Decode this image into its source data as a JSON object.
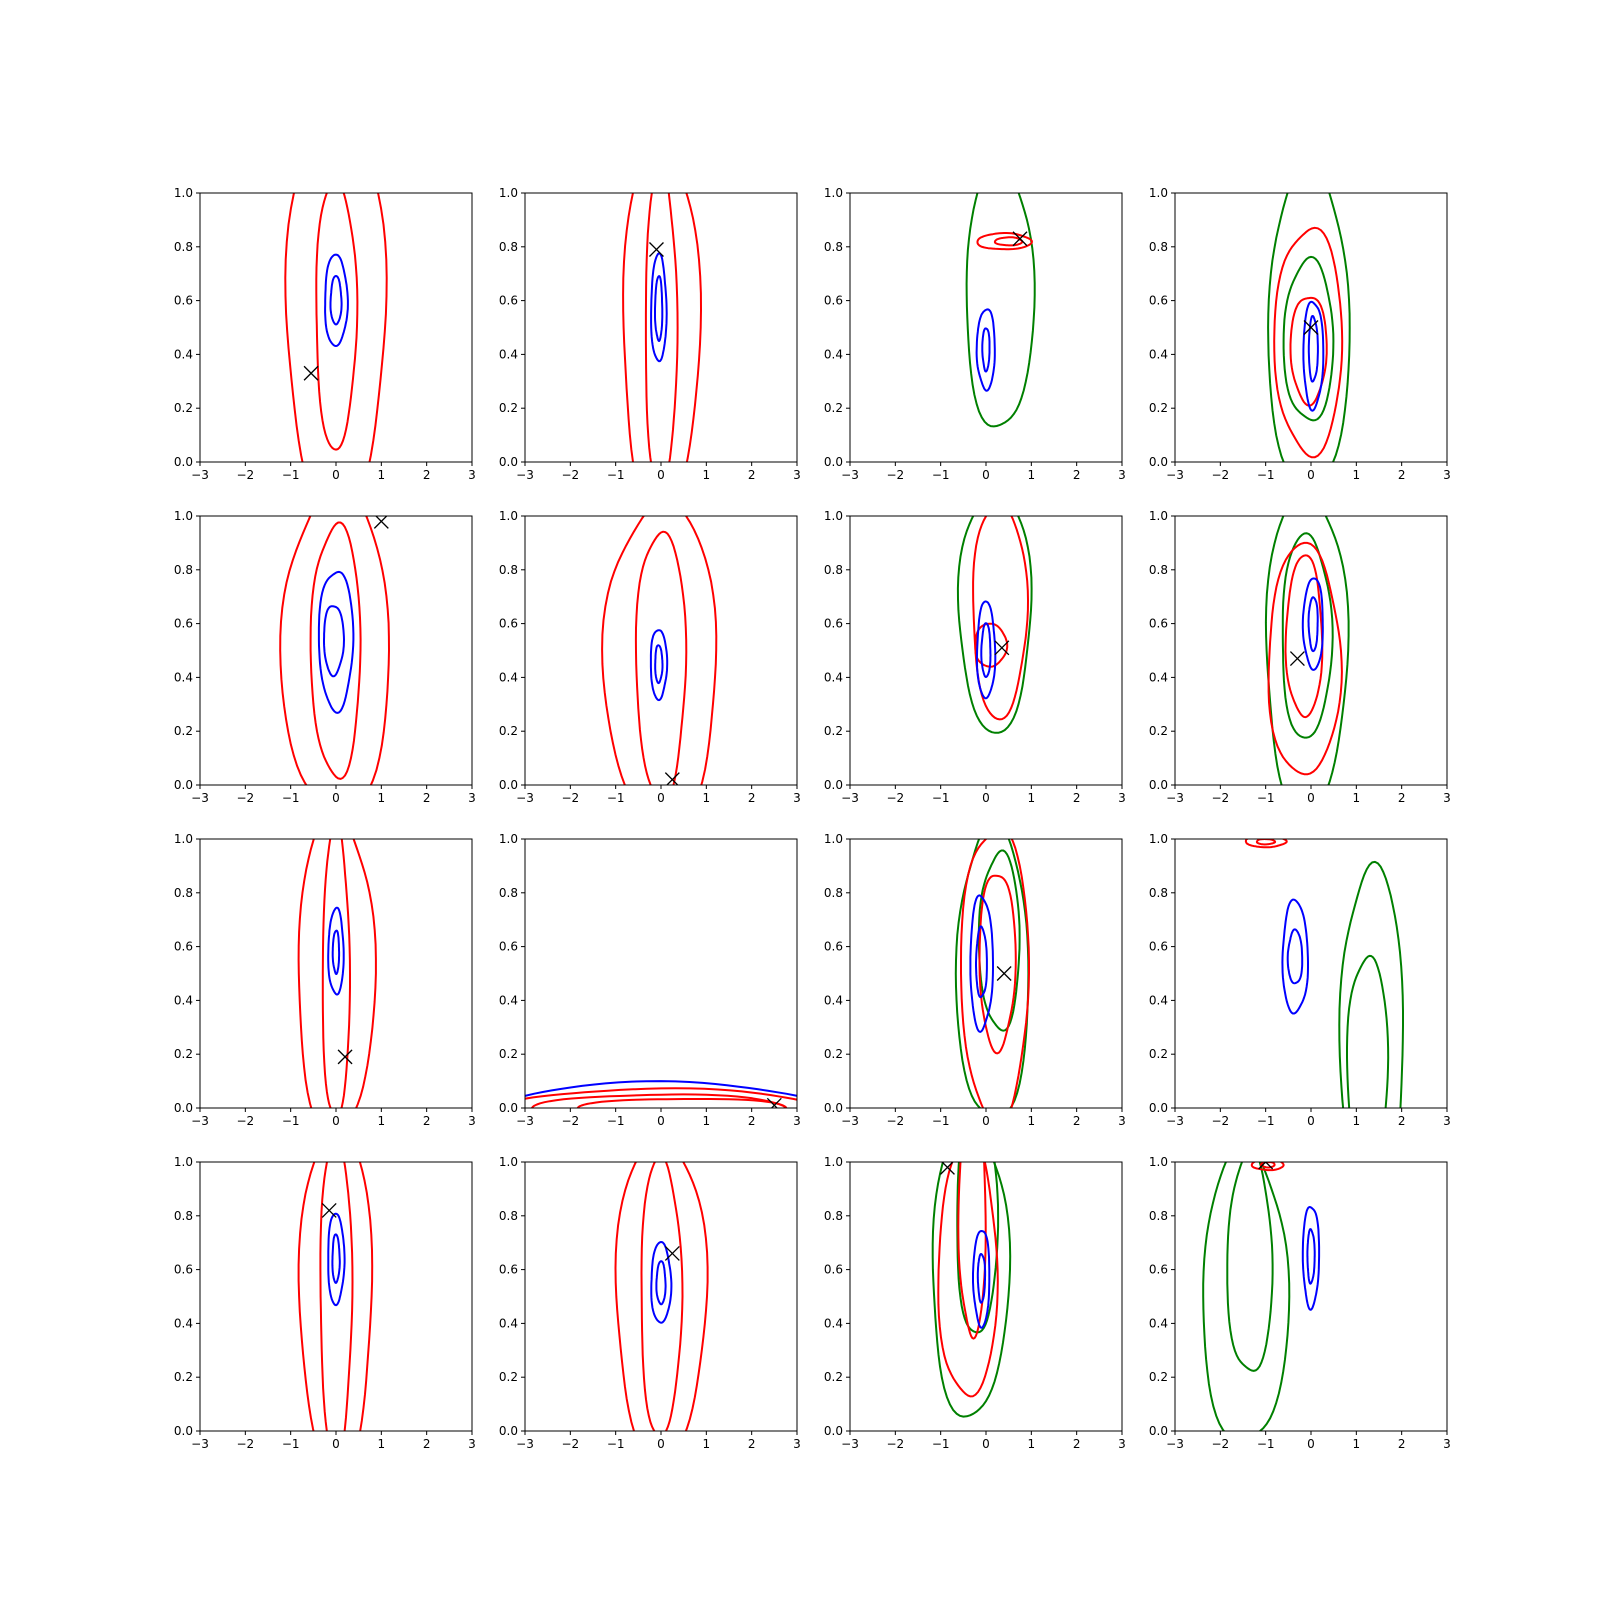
{
  "colors": {
    "red": "#ff0000",
    "blue": "#0000ff",
    "green": "#008000",
    "marker": "#000000"
  },
  "chart_data": {
    "type": "contour",
    "grid": {
      "rows": 4,
      "cols": 4
    },
    "xlim": [
      -3,
      3
    ],
    "ylim": [
      0,
      1
    ],
    "x_ticks": [
      "−3",
      "−2",
      "−1",
      "0",
      "1",
      "2",
      "3"
    ],
    "y_ticks": [
      "0.0",
      "0.2",
      "0.4",
      "0.6",
      "0.8",
      "1.0"
    ],
    "grid_lines": false,
    "panels": [
      {
        "marker": [
          -0.55,
          0.33
        ],
        "contours": [
          {
            "color": "red",
            "cx": 0,
            "cy": 0.55,
            "rx": 1.1,
            "ry": 0.75
          },
          {
            "color": "red",
            "cx": 0,
            "cy": 0.55,
            "rx": 0.45,
            "ry": 0.5
          },
          {
            "color": "blue",
            "cx": 0,
            "cy": 0.6,
            "rx": 0.25,
            "ry": 0.17
          },
          {
            "color": "blue",
            "cx": 0,
            "cy": 0.6,
            "rx": 0.12,
            "ry": 0.09
          }
        ]
      },
      {
        "marker": [
          -0.1,
          0.79
        ],
        "contours": [
          {
            "color": "red",
            "cx": 0,
            "cy": 0.5,
            "rx": 0.85,
            "ry": 0.7
          },
          {
            "color": "red",
            "cx": 0,
            "cy": 0.5,
            "rx": 0.35,
            "ry": 0.6
          },
          {
            "color": "blue",
            "cx": -0.05,
            "cy": 0.57,
            "rx": 0.17,
            "ry": 0.2
          },
          {
            "color": "blue",
            "cx": -0.05,
            "cy": 0.57,
            "rx": 0.08,
            "ry": 0.12
          }
        ]
      },
      {
        "marker": [
          0.75,
          0.83
        ],
        "contours": [
          {
            "color": "green",
            "cx": 0.3,
            "cy": 0.62,
            "rx": 0.75,
            "ry": 0.5
          },
          {
            "color": "red",
            "cx": 0.4,
            "cy": 0.82,
            "rx": 0.6,
            "ry": 0.03
          },
          {
            "color": "red",
            "cx": 0.5,
            "cy": 0.82,
            "rx": 0.3,
            "ry": 0.015
          },
          {
            "color": "blue",
            "cx": 0,
            "cy": 0.42,
            "rx": 0.2,
            "ry": 0.15
          },
          {
            "color": "blue",
            "cx": 0,
            "cy": 0.42,
            "rx": 0.08,
            "ry": 0.08
          }
        ]
      },
      {
        "marker": [
          0,
          0.5
        ],
        "contours": [
          {
            "color": "green",
            "cx": -0.05,
            "cy": 0.5,
            "rx": 0.9,
            "ry": 0.6
          },
          {
            "color": "green",
            "cx": -0.05,
            "cy": 0.45,
            "rx": 0.55,
            "ry": 0.3
          },
          {
            "color": "red",
            "cx": -0.05,
            "cy": 0.45,
            "rx": 0.75,
            "ry": 0.42
          },
          {
            "color": "red",
            "cx": -0.05,
            "cy": 0.42,
            "rx": 0.4,
            "ry": 0.2
          },
          {
            "color": "blue",
            "cx": 0.05,
            "cy": 0.4,
            "rx": 0.22,
            "ry": 0.2
          },
          {
            "color": "blue",
            "cx": 0.05,
            "cy": 0.42,
            "rx": 0.1,
            "ry": 0.12
          }
        ]
      },
      {
        "marker": [
          1,
          0.98
        ],
        "contours": [
          {
            "color": "red",
            "cx": 0,
            "cy": 0.5,
            "rx": 1.2,
            "ry": 0.6
          },
          {
            "color": "red",
            "cx": 0,
            "cy": 0.5,
            "rx": 0.55,
            "ry": 0.47
          },
          {
            "color": "blue",
            "cx": 0,
            "cy": 0.54,
            "rx": 0.38,
            "ry": 0.26
          },
          {
            "color": "blue",
            "cx": -0.05,
            "cy": 0.54,
            "rx": 0.22,
            "ry": 0.13
          }
        ]
      },
      {
        "marker": [
          0.25,
          0.02
        ],
        "contours": [
          {
            "color": "red",
            "cx": 0,
            "cy": 0.45,
            "rx": 1.25,
            "ry": 0.6
          },
          {
            "color": "red",
            "cx": 0,
            "cy": 0.45,
            "rx": 0.55,
            "ry": 0.5
          },
          {
            "color": "blue",
            "cx": -0.05,
            "cy": 0.45,
            "rx": 0.18,
            "ry": 0.13
          },
          {
            "color": "blue",
            "cx": -0.05,
            "cy": 0.45,
            "rx": 0.08,
            "ry": 0.07
          }
        ]
      },
      {
        "marker": [
          0.35,
          0.51
        ],
        "contours": [
          {
            "color": "green",
            "cx": 0.2,
            "cy": 0.65,
            "rx": 0.8,
            "ry": 0.45
          },
          {
            "color": "red",
            "cx": 0.3,
            "cy": 0.65,
            "rx": 0.6,
            "ry": 0.4
          },
          {
            "color": "red",
            "cx": 0.1,
            "cy": 0.52,
            "rx": 0.35,
            "ry": 0.08
          },
          {
            "color": "blue",
            "cx": 0,
            "cy": 0.5,
            "rx": 0.2,
            "ry": 0.18
          },
          {
            "color": "blue",
            "cx": 0,
            "cy": 0.5,
            "rx": 0.1,
            "ry": 0.1
          }
        ]
      },
      {
        "marker": [
          -0.3,
          0.47
        ],
        "contours": [
          {
            "color": "green",
            "cx": -0.1,
            "cy": 0.5,
            "rx": 0.9,
            "ry": 0.6
          },
          {
            "color": "green",
            "cx": -0.1,
            "cy": 0.55,
            "rx": 0.55,
            "ry": 0.38
          },
          {
            "color": "red",
            "cx": -0.15,
            "cy": 0.46,
            "rx": 0.8,
            "ry": 0.43
          },
          {
            "color": "red",
            "cx": -0.15,
            "cy": 0.55,
            "rx": 0.4,
            "ry": 0.3
          },
          {
            "color": "blue",
            "cx": 0.05,
            "cy": 0.6,
            "rx": 0.22,
            "ry": 0.17
          },
          {
            "color": "blue",
            "cx": 0.05,
            "cy": 0.6,
            "rx": 0.1,
            "ry": 0.1
          }
        ]
      },
      {
        "marker": [
          0.2,
          0.19
        ],
        "contours": [
          {
            "color": "red",
            "cx": 0,
            "cy": 0.5,
            "rx": 0.85,
            "ry": 0.6
          },
          {
            "color": "red",
            "cx": 0,
            "cy": 0.5,
            "rx": 0.3,
            "ry": 0.55
          },
          {
            "color": "blue",
            "cx": 0,
            "cy": 0.58,
            "rx": 0.17,
            "ry": 0.16
          },
          {
            "color": "blue",
            "cx": 0,
            "cy": 0.58,
            "rx": 0.07,
            "ry": 0.08
          }
        ]
      },
      {
        "marker": [
          2.5,
          0.01
        ],
        "contours": [
          {
            "color": "blue",
            "cx": 0,
            "cy": 0.0,
            "rx": 3.5,
            "ry": 0.095
          },
          {
            "color": "red",
            "cx": 0,
            "cy": 0.0,
            "rx": 3.5,
            "ry": 0.07
          },
          {
            "color": "red",
            "cx": 0,
            "cy": 0.0,
            "rx": 2.8,
            "ry": 0.05
          },
          {
            "color": "red",
            "cx": 0.5,
            "cy": 0.0,
            "rx": 2.3,
            "ry": 0.035
          }
        ]
      },
      {
        "marker": [
          0.4,
          0.5
        ],
        "contours": [
          {
            "color": "green",
            "cx": 0.15,
            "cy": 0.5,
            "rx": 0.8,
            "ry": 0.55
          },
          {
            "color": "green",
            "cx": 0.3,
            "cy": 0.62,
            "rx": 0.45,
            "ry": 0.33
          },
          {
            "color": "red",
            "cx": 0.2,
            "cy": 0.5,
            "rx": 0.75,
            "ry": 0.55
          },
          {
            "color": "red",
            "cx": 0.25,
            "cy": 0.55,
            "rx": 0.4,
            "ry": 0.33
          },
          {
            "color": "blue",
            "cx": -0.1,
            "cy": 0.54,
            "rx": 0.25,
            "ry": 0.25
          },
          {
            "color": "blue",
            "cx": -0.1,
            "cy": 0.54,
            "rx": 0.12,
            "ry": 0.13
          }
        ]
      },
      {
        "marker": null,
        "contours": [
          {
            "color": "green",
            "cx": 1.35,
            "cy": 0.25,
            "rx": 0.7,
            "ry": 0.65
          },
          {
            "color": "green",
            "cx": 1.25,
            "cy": 0.15,
            "rx": 0.45,
            "ry": 0.42
          },
          {
            "color": "red",
            "cx": -1,
            "cy": 0.99,
            "rx": 0.45,
            "ry": 0.02
          },
          {
            "color": "red",
            "cx": -1,
            "cy": 0.99,
            "rx": 0.2,
            "ry": 0.01
          },
          {
            "color": "blue",
            "cx": -0.35,
            "cy": 0.56,
            "rx": 0.28,
            "ry": 0.21
          },
          {
            "color": "blue",
            "cx": -0.35,
            "cy": 0.56,
            "rx": 0.16,
            "ry": 0.1
          }
        ]
      },
      {
        "marker": [
          -0.15,
          0.82
        ],
        "contours": [
          {
            "color": "red",
            "cx": 0,
            "cy": 0.5,
            "rx": 0.8,
            "ry": 0.65
          },
          {
            "color": "red",
            "cx": 0,
            "cy": 0.5,
            "rx": 0.35,
            "ry": 0.6
          },
          {
            "color": "blue",
            "cx": 0,
            "cy": 0.64,
            "rx": 0.18,
            "ry": 0.17
          },
          {
            "color": "blue",
            "cx": 0,
            "cy": 0.64,
            "rx": 0.08,
            "ry": 0.09
          }
        ]
      },
      {
        "marker": [
          0.25,
          0.66
        ],
        "contours": [
          {
            "color": "red",
            "cx": 0,
            "cy": 0.5,
            "rx": 1.0,
            "ry": 0.6
          },
          {
            "color": "red",
            "cx": 0,
            "cy": 0.5,
            "rx": 0.45,
            "ry": 0.52
          },
          {
            "color": "blue",
            "cx": 0,
            "cy": 0.55,
            "rx": 0.22,
            "ry": 0.15
          },
          {
            "color": "blue",
            "cx": 0,
            "cy": 0.55,
            "rx": 0.1,
            "ry": 0.08
          }
        ]
      },
      {
        "marker": [
          -0.85,
          0.98
        ],
        "contours": [
          {
            "color": "green",
            "cx": -0.35,
            "cy": 0.6,
            "rx": 0.85,
            "ry": 0.55
          },
          {
            "color": "green",
            "cx": -0.2,
            "cy": 0.8,
            "rx": 0.45,
            "ry": 0.45
          },
          {
            "color": "red",
            "cx": -0.4,
            "cy": 0.6,
            "rx": 0.65,
            "ry": 0.48
          },
          {
            "color": "red",
            "cx": -0.3,
            "cy": 0.8,
            "rx": 0.3,
            "ry": 0.45
          },
          {
            "color": "blue",
            "cx": -0.1,
            "cy": 0.57,
            "rx": 0.18,
            "ry": 0.18
          },
          {
            "color": "blue",
            "cx": -0.1,
            "cy": 0.57,
            "rx": 0.08,
            "ry": 0.09
          }
        ]
      },
      {
        "marker": [
          -1,
          1.0
        ],
        "contours": [
          {
            "color": "green",
            "cx": -1.45,
            "cy": 0.5,
            "rx": 0.95,
            "ry": 0.55
          },
          {
            "color": "green",
            "cx": -1.35,
            "cy": 0.62,
            "rx": 0.5,
            "ry": 0.41
          },
          {
            "color": "red",
            "cx": -0.95,
            "cy": 0.99,
            "rx": 0.35,
            "ry": 0.02
          },
          {
            "color": "red",
            "cx": -0.95,
            "cy": 0.99,
            "rx": 0.15,
            "ry": 0.01
          },
          {
            "color": "blue",
            "cx": 0,
            "cy": 0.65,
            "rx": 0.18,
            "ry": 0.19
          },
          {
            "color": "blue",
            "cx": 0,
            "cy": 0.65,
            "rx": 0.08,
            "ry": 0.1
          }
        ]
      }
    ]
  }
}
